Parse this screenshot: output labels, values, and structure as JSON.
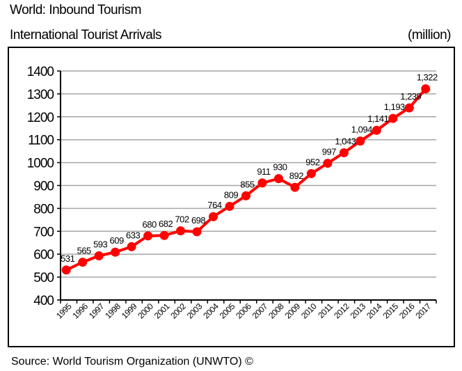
{
  "header": {
    "title": "World: Inbound Tourism",
    "subtitle": "International Tourist Arrivals",
    "unit": "(million)"
  },
  "source": "Source: World Tourism Organization (UNWTO) ©",
  "chart_data": {
    "type": "line",
    "title": "World: Inbound Tourism",
    "subtitle": "International Tourist Arrivals",
    "ylabel": "(million)",
    "xlabel": "",
    "categories": [
      "1995",
      "1996",
      "1997",
      "1998",
      "1999",
      "2000",
      "2001",
      "2002",
      "2003",
      "2004",
      "2005",
      "2006",
      "2007",
      "2008",
      "2009",
      "2010",
      "2011",
      "2012",
      "2013",
      "2014",
      "2015",
      "2016",
      "2017"
    ],
    "series": [
      {
        "values": [
          531,
          565,
          593,
          609,
          633,
          680,
          682,
          702,
          698,
          764,
          809,
          855,
          911,
          930,
          892,
          952,
          997,
          1043,
          1094,
          1141,
          1193,
          1239,
          1322
        ],
        "labels": [
          "531",
          "565",
          "593",
          "609",
          "633",
          "680",
          "682",
          "702",
          "698",
          "764",
          "809",
          "855",
          "911",
          "930",
          "892",
          "952",
          "997",
          "1,043",
          "1,094",
          "1,141",
          "1,193",
          "1,239",
          "1,322"
        ],
        "color": "#ff0000"
      }
    ],
    "ylim": [
      400,
      1400
    ],
    "yticks": [
      400,
      500,
      600,
      700,
      800,
      900,
      1000,
      1100,
      1200,
      1300,
      1400
    ],
    "grid": true,
    "legend": "none"
  }
}
